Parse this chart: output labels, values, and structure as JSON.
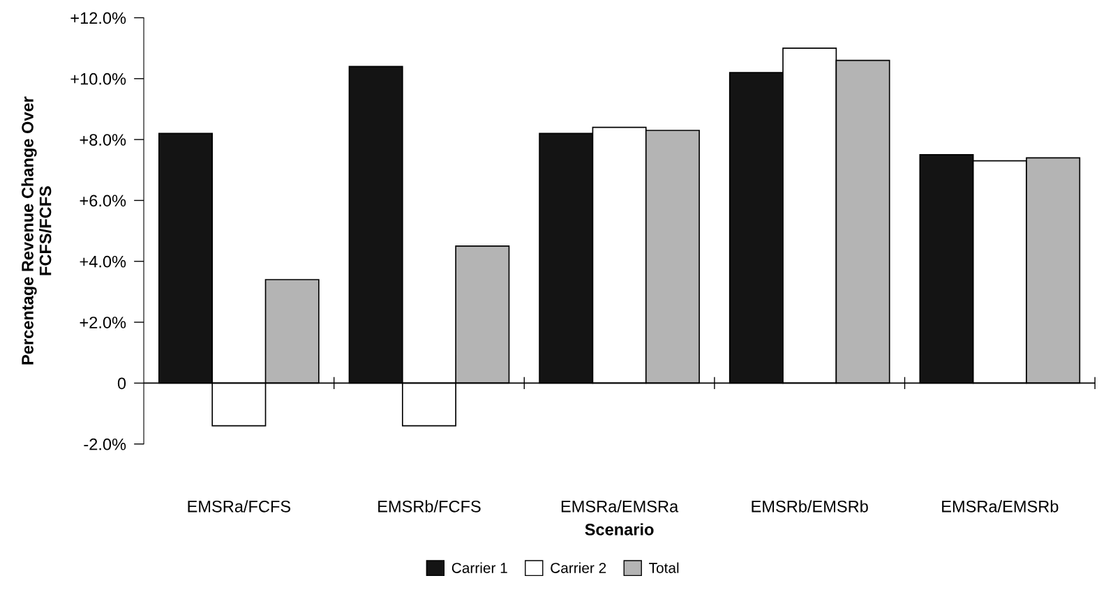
{
  "chart_data": {
    "type": "bar",
    "xlabel": "Scenario",
    "ylabel": "Percentage Revenue Change Over\nFCFS/FCFS",
    "categories": [
      "EMSRa/FCFS",
      "EMSRb/FCFS",
      "EMSRa/EMSRa",
      "EMSRb/EMSRb",
      "EMSRa/EMSRb"
    ],
    "series": [
      {
        "name": "Carrier 1",
        "color": "#141414",
        "values": [
          8.2,
          10.4,
          8.2,
          10.2,
          7.5
        ]
      },
      {
        "name": "Carrier 2",
        "color": "#ffffff",
        "values": [
          -1.4,
          -1.4,
          8.4,
          11.0,
          7.3
        ]
      },
      {
        "name": "Total",
        "color": "#b4b4b4",
        "values": [
          3.4,
          4.5,
          8.3,
          10.6,
          7.4
        ]
      }
    ],
    "ylim": [
      -2,
      12
    ],
    "yticks": [
      {
        "value": -2,
        "label": "-2.0%"
      },
      {
        "value": 0,
        "label": "0"
      },
      {
        "value": 2,
        "label": "+2.0%"
      },
      {
        "value": 4,
        "label": "+4.0%"
      },
      {
        "value": 6,
        "label": "+6.0%"
      },
      {
        "value": 8,
        "label": "+8.0%"
      },
      {
        "value": 10,
        "label": "+10.0%"
      },
      {
        "value": 12,
        "label": "+12.0%"
      }
    ],
    "ref_lines": [
      {
        "axis": "y",
        "value": 0,
        "color": "#000000"
      }
    ],
    "grid": false,
    "legend": "bottom"
  }
}
